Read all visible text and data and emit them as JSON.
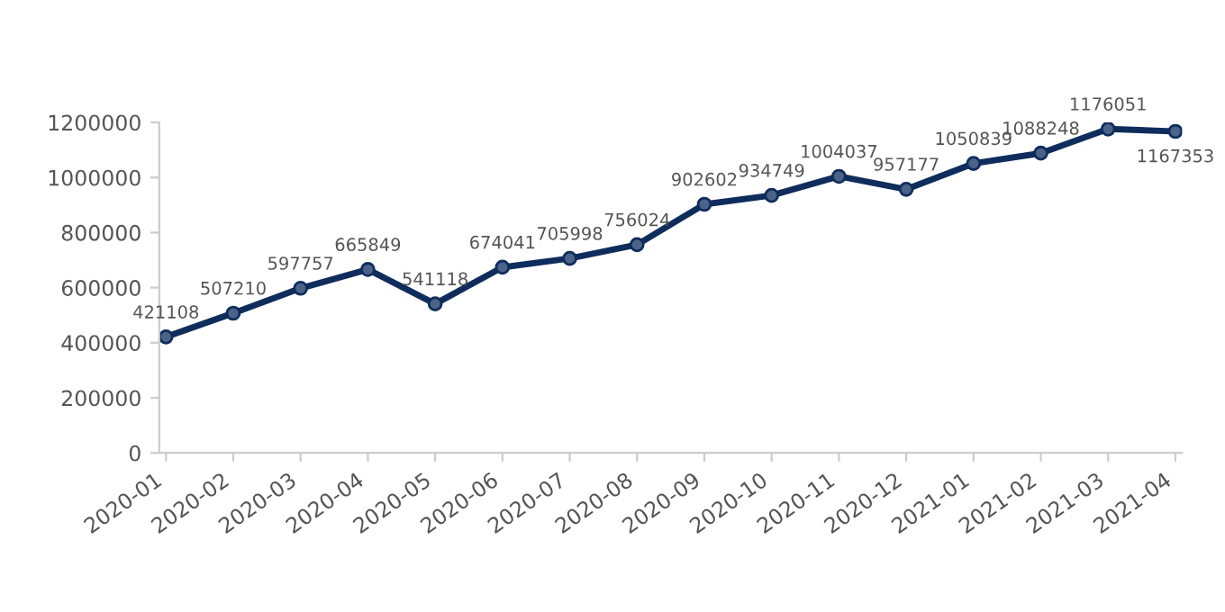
{
  "chart_data": {
    "type": "line",
    "categories": [
      "2020-01",
      "2020-02",
      "2020-03",
      "2020-04",
      "2020-05",
      "2020-06",
      "2020-07",
      "2020-08",
      "2020-09",
      "2020-10",
      "2020-11",
      "2020-12",
      "2021-01",
      "2021-02",
      "2021-03",
      "2021-04"
    ],
    "series": [
      {
        "color": "#0f2d5c",
        "values": [
          421108,
          507210,
          597757,
          665849,
          541118,
          674041,
          705998,
          756024,
          902602,
          934749,
          1004037,
          957177,
          1050839,
          1088248,
          1176051,
          1167353
        ]
      }
    ],
    "ylim": [
      0,
      1200000
    ],
    "yticks": [
      0,
      200000,
      400000,
      600000,
      800000,
      1000000,
      1200000
    ],
    "data_labels": true,
    "marker": "circle",
    "line_style": "solid",
    "grid": false
  }
}
